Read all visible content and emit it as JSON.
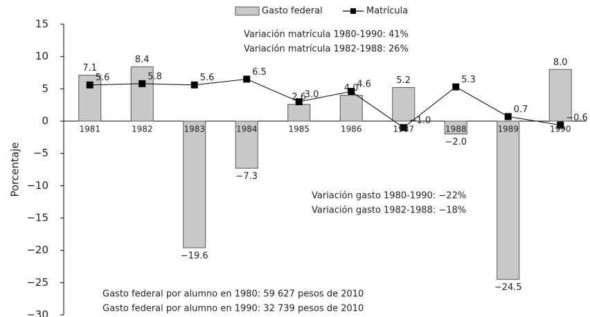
{
  "chart_data": {
    "type": "bar_line",
    "categories": [
      "1981",
      "1982",
      "1983",
      "1984",
      "1985",
      "1986",
      "1987",
      "1988",
      "1989",
      "1990"
    ],
    "series": [
      {
        "name": "Gasto federal",
        "type": "bar",
        "color": "#c8c8c8",
        "values": [
          7.1,
          8.4,
          -19.6,
          -7.3,
          2.6,
          4.0,
          5.2,
          -2.0,
          -24.5,
          8.0
        ],
        "value_labels": [
          "7.1",
          "8.4",
          "−19.6",
          "−7.3",
          "2.6",
          "4.0",
          "5.2",
          "−2.0",
          "−24.5",
          "8.0"
        ]
      },
      {
        "name": "Matrícula",
        "type": "line",
        "color": "#000000",
        "values": [
          5.6,
          5.8,
          5.6,
          6.5,
          3.0,
          4.6,
          -1.0,
          5.3,
          0.7,
          -0.6
        ],
        "value_labels": [
          "5.6",
          "5.8",
          "5.6",
          "6.5",
          "3.0",
          "4.6",
          "−1.0",
          "5.3",
          "0.7",
          "−0.6"
        ]
      }
    ],
    "y_label": "Porcentaje",
    "ylim": [
      -30,
      15
    ],
    "yticks": [
      15,
      10,
      5,
      0,
      {
        "value": -5,
        "label": "−5"
      },
      {
        "value": -10,
        "label": "−10"
      },
      {
        "value": -15,
        "label": "−15"
      },
      {
        "value": -20,
        "label": "−20"
      },
      {
        "value": -25,
        "label": "−25"
      },
      {
        "value": -30,
        "label": "−30"
      }
    ],
    "grid": false,
    "legend": "top",
    "annotations": [
      "Variación matrícula 1980-1990: 41%",
      "Variación matrícula 1982-1988: 26%",
      "Variación gasto 1980-1990: −22%",
      "Variación gasto 1982-1988: −18%",
      "Gasto federal por alumno en 1980: 59 627 pesos de 2010",
      "Gasto federal por alumno en 1990: 32 739 pesos de 2010"
    ]
  }
}
